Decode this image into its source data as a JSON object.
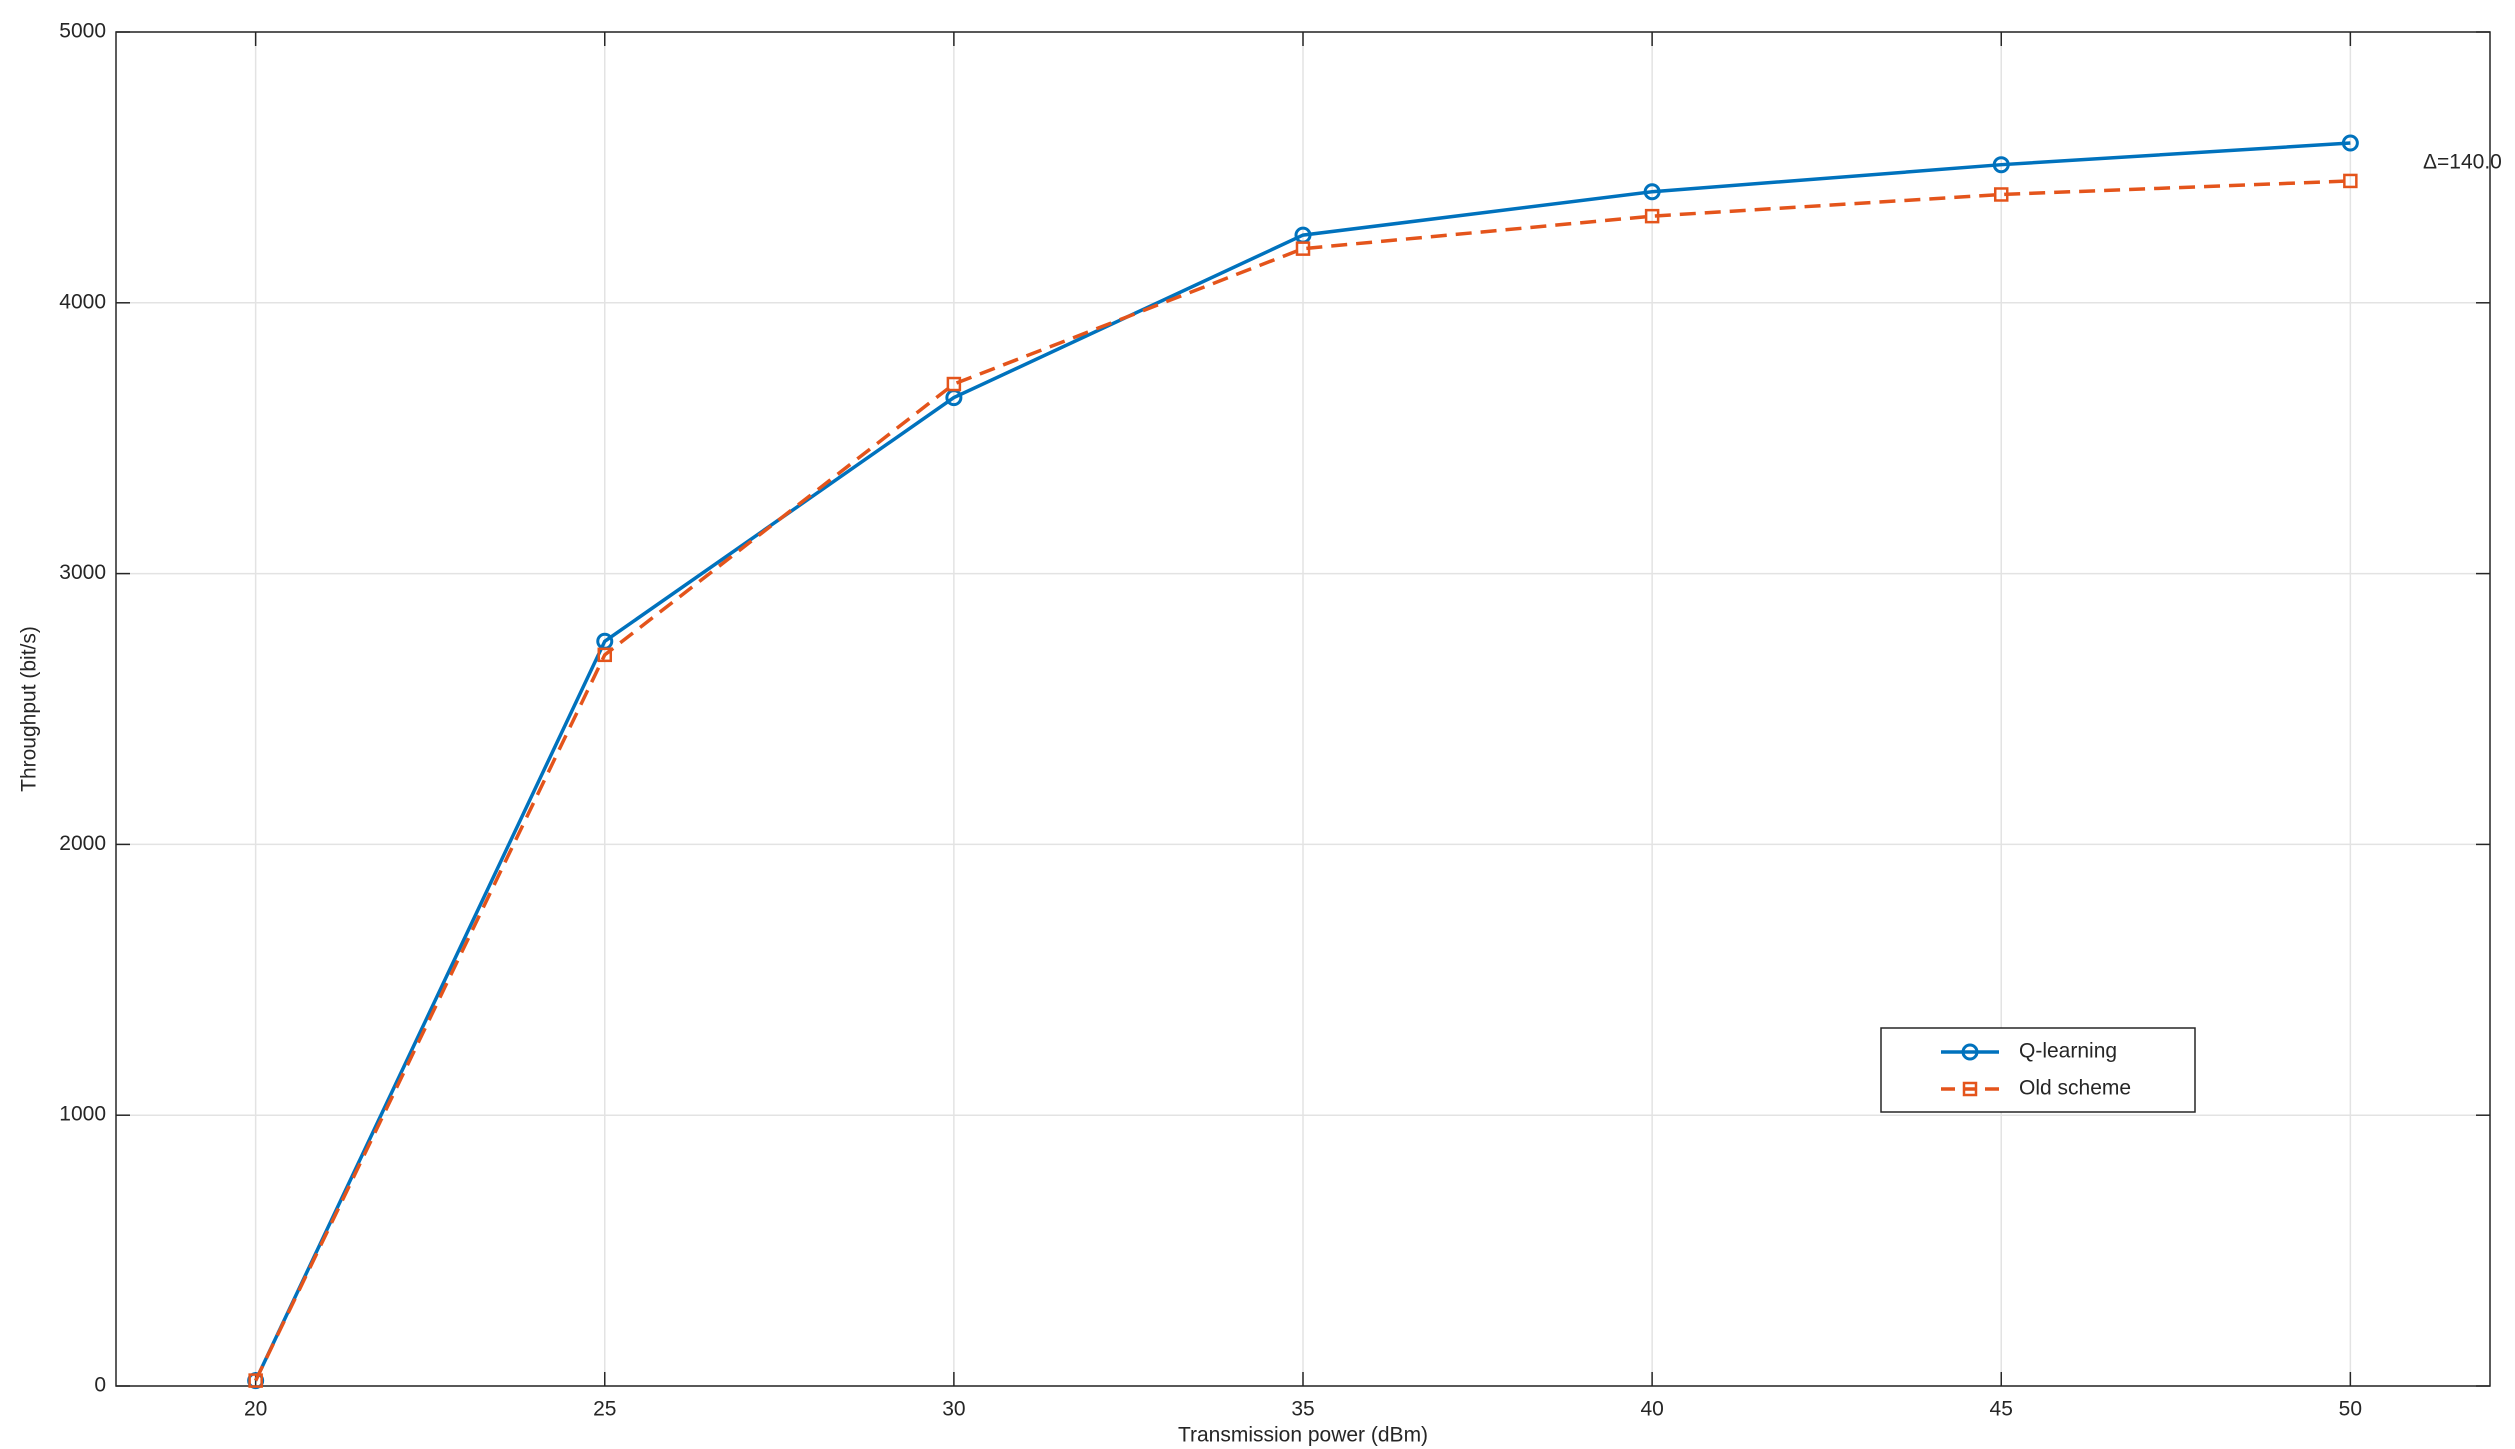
{
  "chart_data": {
    "type": "line",
    "x": [
      20,
      25,
      30,
      35,
      40,
      45,
      50
    ],
    "series": [
      {
        "name": "Q-learning",
        "color": "#0072bd",
        "marker": "circle",
        "dash": "solid",
        "values": [
          20,
          2750,
          3650,
          4250,
          4410,
          4510,
          4590
        ]
      },
      {
        "name": "Old scheme",
        "color": "#e4541b",
        "marker": "square",
        "dash": "dashed",
        "values": [
          20,
          2700,
          3700,
          4200,
          4320,
          4400,
          4450
        ]
      }
    ],
    "xlim": [
      18,
      52
    ],
    "xticks": [
      20,
      25,
      30,
      35,
      40,
      45,
      50
    ],
    "ylim": [
      0,
      5000
    ],
    "yticks": [
      0,
      1000,
      2000,
      3000,
      4000,
      5000
    ],
    "x_label": "Transmission power (dBm)",
    "y_label": "Throughput (bit/s)",
    "annotation": "Δ=140.0",
    "grid": true,
    "legend": "lower right"
  }
}
